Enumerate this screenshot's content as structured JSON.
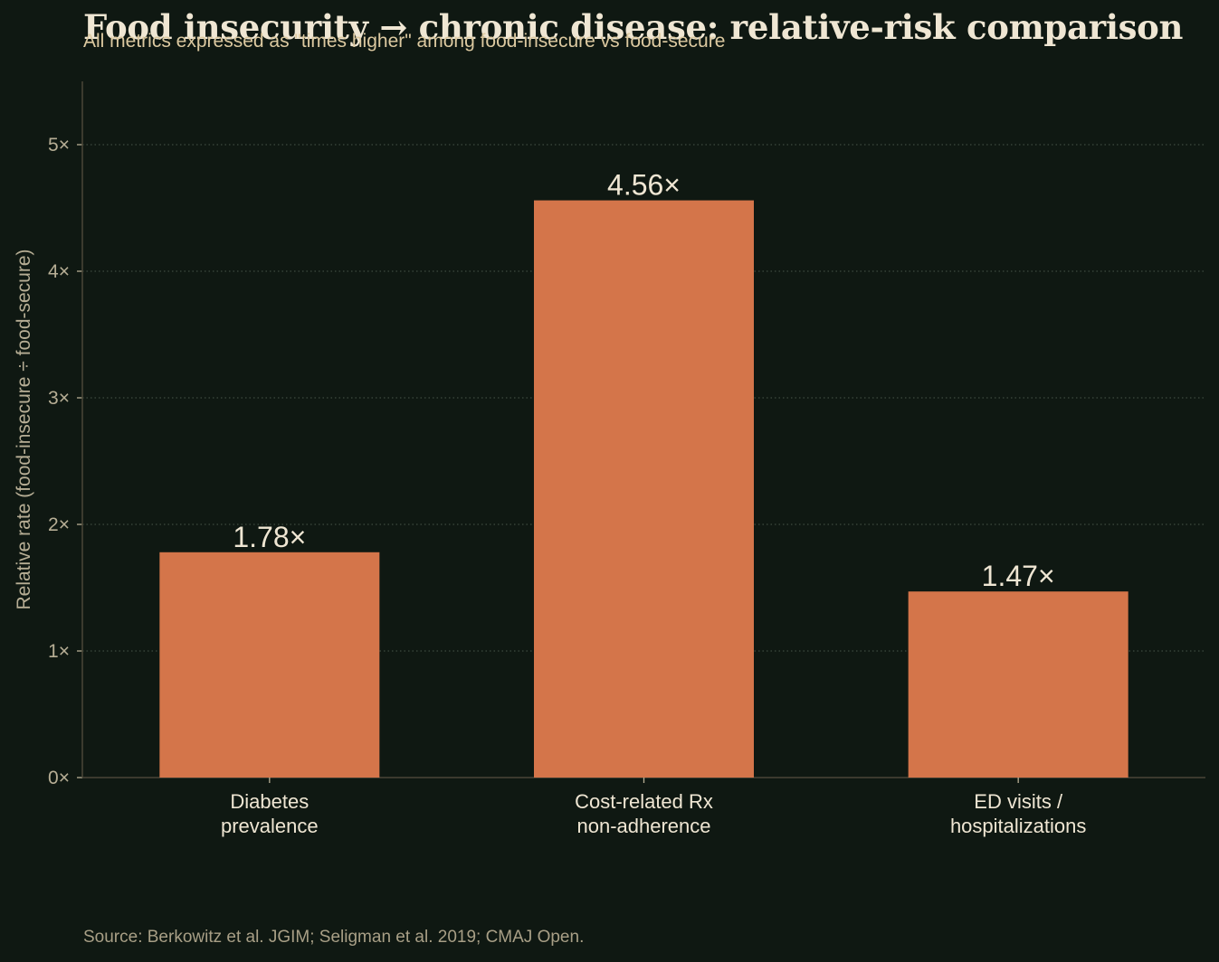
{
  "chart_data": {
    "type": "bar",
    "title": "Food insecurity → chronic disease: relative-risk comparison",
    "subtitle": "All metrics expressed as \"times higher\" among food-insecure vs food-secure",
    "ylabel": "Relative rate (food-insecure ÷ food-secure)",
    "xlabel": "",
    "categories": [
      [
        "Diabetes",
        "prevalence"
      ],
      [
        "Cost-related Rx",
        "non-adherence"
      ],
      [
        "ED visits /",
        "hospitalizations"
      ]
    ],
    "values": [
      1.78,
      4.56,
      1.47
    ],
    "value_labels": [
      "1.78×",
      "4.56×",
      "1.47×"
    ],
    "ylim": [
      0,
      5.5
    ],
    "yticks": [
      0,
      1,
      2,
      3,
      4,
      5
    ],
    "ytick_labels": [
      "0×",
      "1×",
      "2×",
      "3×",
      "4×",
      "5×"
    ],
    "grid": "horizontal dotted",
    "legend": "none"
  },
  "source": "Source: Berkowitz et al. JGIM; Seligman et al. 2019; CMAJ Open.",
  "colors": {
    "background": "#0f1812",
    "bar": "#d4754a",
    "text": "#efe6d3",
    "muted_text": "#b7ae95",
    "axis": "#4a4637",
    "grid": "#3d4a3f"
  }
}
